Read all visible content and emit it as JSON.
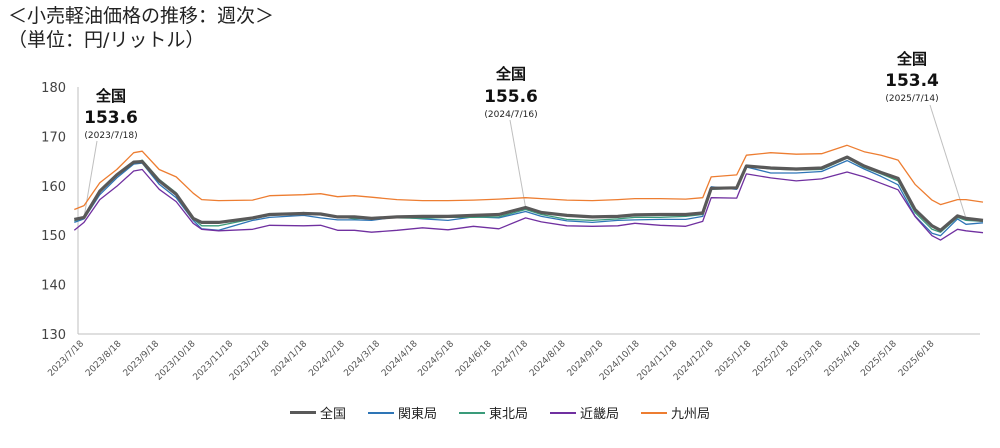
{
  "title_line1": "＜小売軽油価格の推移：週次＞",
  "title_line2": "（単位：円/リットル）",
  "chart_data": {
    "type": "line",
    "ylim": [
      130,
      180
    ],
    "yticks": [
      130,
      140,
      150,
      160,
      170,
      180
    ],
    "x_range": [
      "2023-07-18",
      "2025-07-14"
    ],
    "xtick_labels": [
      "2023/7/18",
      "2023/8/18",
      "2023/9/18",
      "2023/10/18",
      "2023/11/18",
      "2023/12/18",
      "2024/1/18",
      "2024/2/18",
      "2024/3/18",
      "2024/4/18",
      "2024/5/18",
      "2024/6/18",
      "2024/7/18",
      "2024/8/18",
      "2024/9/18",
      "2024/10/18",
      "2024/11/18",
      "2024/12/18",
      "2025/1/18",
      "2025/2/18",
      "2025/3/18",
      "2025/4/18",
      "2025/5/18",
      "2025/6/18"
    ],
    "grid": false,
    "legend_position": "bottom",
    "series": [
      {
        "name": "全国",
        "color": "#595959",
        "width": 3.2,
        "points": [
          [
            "2023-07-10",
            153.2
          ],
          [
            "2023-07-18",
            153.6
          ],
          [
            "2023-07-31",
            158.9
          ],
          [
            "2023-08-14",
            162.2
          ],
          [
            "2023-08-28",
            164.8
          ],
          [
            "2023-09-04",
            164.9
          ],
          [
            "2023-09-18",
            161.0
          ],
          [
            "2023-10-02",
            158.3
          ],
          [
            "2023-10-16",
            153.4
          ],
          [
            "2023-10-23",
            152.6
          ],
          [
            "2023-11-06",
            152.6
          ],
          [
            "2023-12-04",
            153.5
          ],
          [
            "2023-12-18",
            154.2
          ],
          [
            "2024-01-15",
            154.4
          ],
          [
            "2024-01-29",
            154.3
          ],
          [
            "2024-02-12",
            153.7
          ],
          [
            "2024-02-26",
            153.7
          ],
          [
            "2024-03-11",
            153.4
          ],
          [
            "2024-04-01",
            153.7
          ],
          [
            "2024-04-22",
            153.8
          ],
          [
            "2024-05-13",
            153.8
          ],
          [
            "2024-06-03",
            154.0
          ],
          [
            "2024-06-24",
            154.2
          ],
          [
            "2024-07-16",
            155.6
          ],
          [
            "2024-07-29",
            154.6
          ],
          [
            "2024-08-19",
            154.0
          ],
          [
            "2024-09-09",
            153.7
          ],
          [
            "2024-09-30",
            153.8
          ],
          [
            "2024-10-14",
            154.1
          ],
          [
            "2024-11-04",
            154.2
          ],
          [
            "2024-11-25",
            154.2
          ],
          [
            "2024-12-09",
            154.5
          ],
          [
            "2024-12-16",
            159.5
          ],
          [
            "2025-01-06",
            159.6
          ],
          [
            "2025-01-14",
            164.0
          ],
          [
            "2025-02-03",
            163.6
          ],
          [
            "2025-02-24",
            163.4
          ],
          [
            "2025-03-17",
            163.6
          ],
          [
            "2025-04-07",
            165.8
          ],
          [
            "2025-04-21",
            164.0
          ],
          [
            "2025-05-05",
            162.7
          ],
          [
            "2025-05-19",
            161.5
          ],
          [
            "2025-06-02",
            155.2
          ],
          [
            "2025-06-16",
            151.9
          ],
          [
            "2025-06-23",
            151.0
          ],
          [
            "2025-07-07",
            153.9
          ],
          [
            "2025-07-14",
            153.4
          ],
          [
            "2025-07-28",
            153.0
          ]
        ]
      },
      {
        "name": "関東局",
        "color": "#2e75b6",
        "width": 1.3,
        "points": [
          [
            "2023-07-10",
            152.6
          ],
          [
            "2023-07-18",
            153.3
          ],
          [
            "2023-07-31",
            158.2
          ],
          [
            "2023-08-14",
            161.6
          ],
          [
            "2023-08-28",
            164.4
          ],
          [
            "2023-09-04",
            164.6
          ],
          [
            "2023-09-18",
            160.3
          ],
          [
            "2023-10-02",
            157.6
          ],
          [
            "2023-10-16",
            153.0
          ],
          [
            "2023-10-23",
            151.3
          ],
          [
            "2023-11-06",
            151.0
          ],
          [
            "2023-12-04",
            153.0
          ],
          [
            "2023-12-18",
            153.6
          ],
          [
            "2024-01-15",
            154.0
          ],
          [
            "2024-01-29",
            153.5
          ],
          [
            "2024-02-12",
            153.1
          ],
          [
            "2024-02-26",
            153.1
          ],
          [
            "2024-03-11",
            153.0
          ],
          [
            "2024-04-01",
            153.7
          ],
          [
            "2024-04-22",
            153.3
          ],
          [
            "2024-05-13",
            153.0
          ],
          [
            "2024-06-03",
            153.7
          ],
          [
            "2024-06-24",
            153.5
          ],
          [
            "2024-07-16",
            154.8
          ],
          [
            "2024-07-29",
            153.8
          ],
          [
            "2024-08-19",
            152.9
          ],
          [
            "2024-09-09",
            152.6
          ],
          [
            "2024-09-30",
            153.0
          ],
          [
            "2024-10-14",
            153.1
          ],
          [
            "2024-11-04",
            153.2
          ],
          [
            "2024-11-25",
            153.2
          ],
          [
            "2024-12-09",
            153.8
          ],
          [
            "2024-12-16",
            159.8
          ],
          [
            "2025-01-06",
            159.3
          ],
          [
            "2025-01-14",
            163.8
          ],
          [
            "2025-02-03",
            162.6
          ],
          [
            "2025-02-24",
            162.6
          ],
          [
            "2025-03-17",
            162.9
          ],
          [
            "2025-04-07",
            165.1
          ],
          [
            "2025-04-21",
            163.4
          ],
          [
            "2025-05-05",
            161.9
          ],
          [
            "2025-05-19",
            160.2
          ],
          [
            "2025-06-02",
            153.9
          ],
          [
            "2025-06-16",
            150.4
          ],
          [
            "2025-06-23",
            149.9
          ],
          [
            "2025-07-07",
            153.3
          ],
          [
            "2025-07-14",
            152.2
          ],
          [
            "2025-07-28",
            152.5
          ]
        ]
      },
      {
        "name": "東北局",
        "color": "#3a9b7a",
        "width": 1.3,
        "points": [
          [
            "2023-07-10",
            152.9
          ],
          [
            "2023-07-18",
            153.5
          ],
          [
            "2023-07-31",
            158.7
          ],
          [
            "2023-08-14",
            162.0
          ],
          [
            "2023-08-28",
            164.6
          ],
          [
            "2023-09-04",
            165.2
          ],
          [
            "2023-09-18",
            161.3
          ],
          [
            "2023-10-02",
            158.6
          ],
          [
            "2023-10-16",
            153.3
          ],
          [
            "2023-10-23",
            151.9
          ],
          [
            "2023-11-06",
            151.9
          ],
          [
            "2023-12-04",
            153.3
          ],
          [
            "2023-12-18",
            154.0
          ],
          [
            "2024-01-15",
            154.6
          ],
          [
            "2024-01-29",
            154.1
          ],
          [
            "2024-02-12",
            153.8
          ],
          [
            "2024-02-26",
            153.3
          ],
          [
            "2024-03-11",
            153.5
          ],
          [
            "2024-04-01",
            153.5
          ],
          [
            "2024-04-22",
            153.4
          ],
          [
            "2024-05-13",
            153.6
          ],
          [
            "2024-06-03",
            153.6
          ],
          [
            "2024-06-24",
            153.7
          ],
          [
            "2024-07-16",
            155.2
          ],
          [
            "2024-07-29",
            154.2
          ],
          [
            "2024-08-19",
            153.2
          ],
          [
            "2024-09-09",
            153.0
          ],
          [
            "2024-09-30",
            153.3
          ],
          [
            "2024-10-14",
            153.6
          ],
          [
            "2024-11-04",
            153.6
          ],
          [
            "2024-11-25",
            153.8
          ],
          [
            "2024-12-09",
            154.2
          ],
          [
            "2024-12-16",
            159.3
          ],
          [
            "2025-01-06",
            159.5
          ],
          [
            "2025-01-14",
            164.0
          ],
          [
            "2025-02-03",
            163.4
          ],
          [
            "2025-02-24",
            163.2
          ],
          [
            "2025-03-17",
            163.3
          ],
          [
            "2025-04-07",
            165.6
          ],
          [
            "2025-04-21",
            163.7
          ],
          [
            "2025-05-05",
            162.4
          ],
          [
            "2025-05-19",
            161.0
          ],
          [
            "2025-06-02",
            154.6
          ],
          [
            "2025-06-16",
            151.2
          ],
          [
            "2025-06-23",
            150.6
          ],
          [
            "2025-07-07",
            153.6
          ],
          [
            "2025-07-14",
            153.0
          ],
          [
            "2025-07-28",
            152.8
          ]
        ]
      },
      {
        "name": "近畿局",
        "color": "#7030a0",
        "width": 1.3,
        "points": [
          [
            "2023-07-10",
            151.0
          ],
          [
            "2023-07-18",
            152.6
          ],
          [
            "2023-07-31",
            157.2
          ],
          [
            "2023-08-14",
            159.9
          ],
          [
            "2023-08-28",
            163.0
          ],
          [
            "2023-09-04",
            163.3
          ],
          [
            "2023-09-18",
            159.3
          ],
          [
            "2023-10-02",
            156.8
          ],
          [
            "2023-10-16",
            152.4
          ],
          [
            "2023-10-23",
            151.2
          ],
          [
            "2023-11-06",
            150.9
          ],
          [
            "2023-12-04",
            151.2
          ],
          [
            "2023-12-18",
            152.0
          ],
          [
            "2024-01-15",
            151.9
          ],
          [
            "2024-01-29",
            152.0
          ],
          [
            "2024-02-12",
            151.0
          ],
          [
            "2024-02-26",
            151.0
          ],
          [
            "2024-03-11",
            150.6
          ],
          [
            "2024-04-01",
            151.0
          ],
          [
            "2024-04-22",
            151.5
          ],
          [
            "2024-05-13",
            151.1
          ],
          [
            "2024-06-03",
            151.8
          ],
          [
            "2024-06-24",
            151.3
          ],
          [
            "2024-07-16",
            153.5
          ],
          [
            "2024-07-29",
            152.7
          ],
          [
            "2024-08-19",
            151.9
          ],
          [
            "2024-09-09",
            151.8
          ],
          [
            "2024-09-30",
            151.9
          ],
          [
            "2024-10-14",
            152.4
          ],
          [
            "2024-11-04",
            152.0
          ],
          [
            "2024-11-25",
            151.8
          ],
          [
            "2024-12-09",
            152.8
          ],
          [
            "2024-12-16",
            157.6
          ],
          [
            "2025-01-06",
            157.5
          ],
          [
            "2025-01-14",
            162.4
          ],
          [
            "2025-02-03",
            161.6
          ],
          [
            "2025-02-24",
            161.0
          ],
          [
            "2025-03-17",
            161.4
          ],
          [
            "2025-04-07",
            162.8
          ],
          [
            "2025-04-21",
            161.8
          ],
          [
            "2025-05-05",
            160.5
          ],
          [
            "2025-05-19",
            159.2
          ],
          [
            "2025-06-02",
            153.8
          ],
          [
            "2025-06-16",
            149.9
          ],
          [
            "2025-06-23",
            149.0
          ],
          [
            "2025-07-07",
            151.2
          ],
          [
            "2025-07-14",
            150.9
          ],
          [
            "2025-07-28",
            150.5
          ]
        ]
      },
      {
        "name": "九州局",
        "color": "#ed7d31",
        "width": 1.3,
        "points": [
          [
            "2023-07-10",
            155.2
          ],
          [
            "2023-07-18",
            156.0
          ],
          [
            "2023-07-31",
            160.6
          ],
          [
            "2023-08-14",
            163.3
          ],
          [
            "2023-08-28",
            166.7
          ],
          [
            "2023-09-04",
            167.0
          ],
          [
            "2023-09-18",
            163.3
          ],
          [
            "2023-10-02",
            161.8
          ],
          [
            "2023-10-16",
            158.5
          ],
          [
            "2023-10-23",
            157.2
          ],
          [
            "2023-11-06",
            157.0
          ],
          [
            "2023-12-04",
            157.1
          ],
          [
            "2023-12-18",
            158.0
          ],
          [
            "2024-01-15",
            158.2
          ],
          [
            "2024-01-29",
            158.4
          ],
          [
            "2024-02-12",
            157.8
          ],
          [
            "2024-02-26",
            158.0
          ],
          [
            "2024-03-11",
            157.7
          ],
          [
            "2024-04-01",
            157.2
          ],
          [
            "2024-04-22",
            157.0
          ],
          [
            "2024-05-13",
            157.0
          ],
          [
            "2024-06-03",
            157.1
          ],
          [
            "2024-06-24",
            157.3
          ],
          [
            "2024-07-16",
            157.6
          ],
          [
            "2024-07-29",
            157.4
          ],
          [
            "2024-08-19",
            157.1
          ],
          [
            "2024-09-09",
            157.0
          ],
          [
            "2024-09-30",
            157.2
          ],
          [
            "2024-10-14",
            157.4
          ],
          [
            "2024-11-04",
            157.4
          ],
          [
            "2024-11-25",
            157.3
          ],
          [
            "2024-12-09",
            157.6
          ],
          [
            "2024-12-16",
            161.8
          ],
          [
            "2025-01-06",
            162.2
          ],
          [
            "2025-01-14",
            166.2
          ],
          [
            "2025-02-03",
            166.7
          ],
          [
            "2025-02-24",
            166.4
          ],
          [
            "2025-03-17",
            166.5
          ],
          [
            "2025-04-07",
            168.2
          ],
          [
            "2025-04-21",
            166.9
          ],
          [
            "2025-05-05",
            166.2
          ],
          [
            "2025-05-19",
            165.2
          ],
          [
            "2025-06-02",
            160.3
          ],
          [
            "2025-06-16",
            157.1
          ],
          [
            "2025-06-23",
            156.2
          ],
          [
            "2025-07-07",
            157.2
          ],
          [
            "2025-07-14",
            157.2
          ],
          [
            "2025-07-28",
            156.7
          ]
        ]
      }
    ],
    "annotations": [
      {
        "heading": "全国",
        "value": "153.6",
        "date": "(2023/7/18)",
        "x": "2023-07-18",
        "y": 153.6
      },
      {
        "heading": "全国",
        "value": "155.6",
        "date": "(2024/7/16)",
        "x": "2024-07-16",
        "y": 155.6
      },
      {
        "heading": "全国",
        "value": "153.4",
        "date": "(2025/7/14)",
        "x": "2025-07-14",
        "y": 153.4
      }
    ]
  }
}
